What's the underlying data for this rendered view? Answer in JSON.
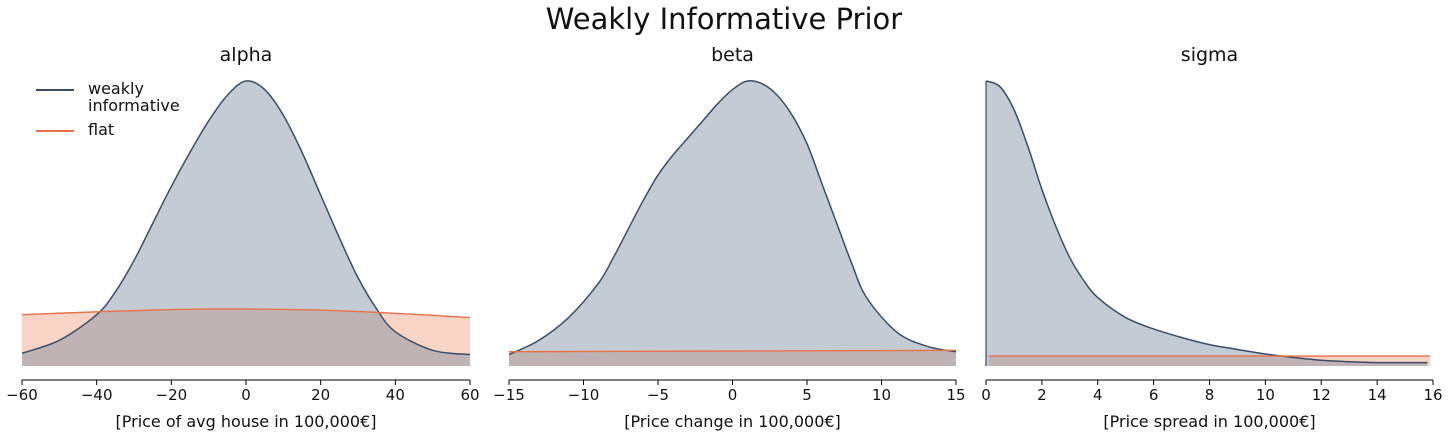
{
  "chart_title": "Weakly Informative Prior",
  "colors": {
    "weakly": "#3b4d66",
    "weakly_fill": "#c1c9d3",
    "flat": "#e8714a",
    "flat_fill": "#f8d4c7",
    "overlap_fill": "#d1b3b1"
  },
  "legend": {
    "items": [
      {
        "label": "weakly\ninformative",
        "color": "#3b4d66"
      },
      {
        "label": "flat",
        "color": "#e8714a"
      }
    ],
    "placement": "top-left"
  },
  "chart_data": [
    {
      "type": "area",
      "title": "alpha",
      "xlabel": "[Price of avg house in 100,000€]",
      "xlim": [
        -60,
        60
      ],
      "xticks": [
        -60,
        -40,
        -20,
        0,
        20,
        40,
        60
      ],
      "series": [
        {
          "name": "weakly informative",
          "x": [
            -60,
            -50,
            -40,
            -35,
            -30,
            -25,
            -20,
            -15,
            -10,
            -5,
            0,
            5,
            10,
            15,
            20,
            25,
            30,
            35,
            40,
            50,
            60
          ],
          "y": [
            0.045,
            0.09,
            0.18,
            0.26,
            0.37,
            0.5,
            0.63,
            0.75,
            0.86,
            0.95,
            1.0,
            0.97,
            0.88,
            0.75,
            0.6,
            0.45,
            0.31,
            0.2,
            0.12,
            0.055,
            0.04
          ]
        },
        {
          "name": "flat",
          "x": [
            -60,
            -40,
            -20,
            -10,
            0,
            20,
            40,
            60
          ],
          "y": [
            0.18,
            0.19,
            0.198,
            0.2,
            0.2,
            0.196,
            0.185,
            0.17
          ]
        }
      ]
    },
    {
      "type": "area",
      "title": "beta",
      "xlabel": "[Price change in 100,000€]",
      "xlim": [
        -15,
        15
      ],
      "xticks": [
        -15,
        -10,
        -5,
        0,
        5,
        10,
        15
      ],
      "series": [
        {
          "name": "weakly informative",
          "x": [
            -15,
            -13,
            -11,
            -9,
            -8,
            -7,
            -6,
            -5,
            -4,
            -3,
            -2,
            -1,
            0,
            1,
            2,
            3,
            4,
            5,
            6,
            7,
            8,
            9,
            11,
            13,
            15
          ],
          "y": [
            0.04,
            0.09,
            0.17,
            0.29,
            0.38,
            0.48,
            0.58,
            0.67,
            0.74,
            0.8,
            0.86,
            0.92,
            0.97,
            1.0,
            0.99,
            0.95,
            0.88,
            0.78,
            0.64,
            0.5,
            0.36,
            0.24,
            0.12,
            0.07,
            0.05
          ]
        },
        {
          "name": "flat",
          "x": [
            -15,
            15
          ],
          "y": [
            0.05,
            0.055
          ]
        }
      ]
    },
    {
      "type": "area",
      "title": "sigma",
      "xlabel": "[Price spread in 100,000€]",
      "xlim": [
        0,
        16
      ],
      "xticks": [
        0,
        2,
        4,
        6,
        8,
        10,
        12,
        14,
        16
      ],
      "series": [
        {
          "name": "weakly informative",
          "x": [
            0,
            0.5,
            1,
            1.5,
            2,
            2.5,
            3,
            3.5,
            4,
            5,
            6,
            7,
            8,
            9,
            10,
            11,
            12,
            13,
            14,
            15,
            15.8
          ],
          "y": [
            1.0,
            0.98,
            0.9,
            0.77,
            0.62,
            0.49,
            0.38,
            0.3,
            0.24,
            0.17,
            0.13,
            0.1,
            0.075,
            0.058,
            0.042,
            0.03,
            0.02,
            0.015,
            0.012,
            0.012,
            0.012
          ]
        },
        {
          "name": "flat",
          "x": [
            0.1,
            15.9
          ],
          "y": [
            0.035,
            0.035
          ]
        }
      ]
    }
  ]
}
